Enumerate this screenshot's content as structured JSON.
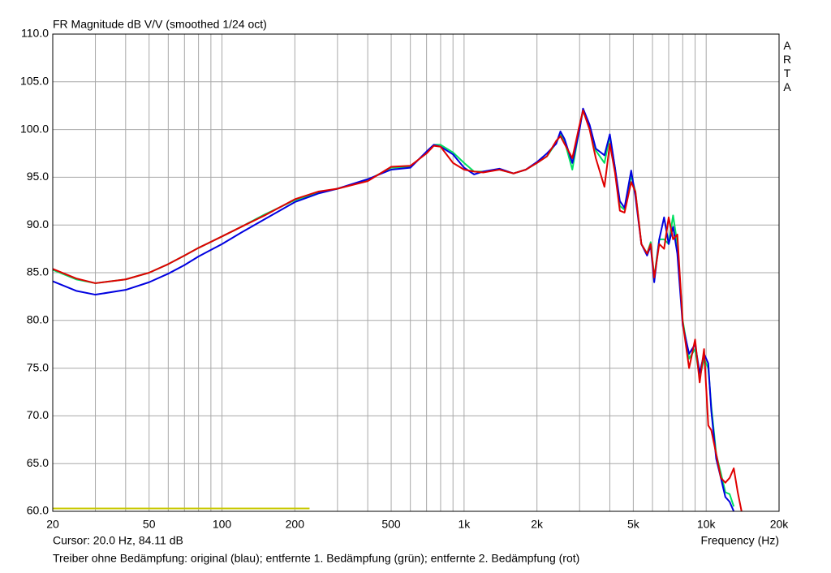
{
  "chart_data": {
    "type": "line",
    "title": "FR Magnitude dB V/V (smoothed 1/24 oct)",
    "logo": "ARTA",
    "cursor": "Cursor: 20.0 Hz, 84.11 dB",
    "xlabel": "Frequency (Hz)",
    "caption": "Treiber ohne Bedämpfung: original (blau); entfernte 1. Bedämpfung (grün); entfernte 2. Bedämpfung (rot)",
    "xlog": true,
    "grid": true,
    "xlim": [
      20,
      20000
    ],
    "ylim": [
      60,
      110
    ],
    "xticks": [
      20,
      50,
      100,
      200,
      500,
      {
        "value": 1000,
        "label": "1k"
      },
      {
        "value": 2000,
        "label": "2k"
      },
      {
        "value": 5000,
        "label": "5k"
      },
      {
        "value": 10000,
        "label": "10k"
      },
      {
        "value": 20000,
        "label": "20k"
      }
    ],
    "xminor": [
      30,
      40,
      60,
      70,
      80,
      90,
      300,
      400,
      600,
      700,
      800,
      900,
      3000,
      4000,
      6000,
      7000,
      8000,
      9000
    ],
    "yticks": [
      {
        "value": 60,
        "label": "60.0"
      },
      {
        "value": 65,
        "label": "65.0"
      },
      {
        "value": 70,
        "label": "70.0"
      },
      {
        "value": 75,
        "label": "75.0"
      },
      {
        "value": 80,
        "label": "80.0"
      },
      {
        "value": 85,
        "label": "85.0"
      },
      {
        "value": 90,
        "label": "90.0"
      },
      {
        "value": 95,
        "label": "95.0"
      },
      {
        "value": 100,
        "label": "100.0"
      },
      {
        "value": 105,
        "label": "105.0"
      },
      {
        "value": 110,
        "label": "110.0"
      }
    ],
    "x": [
      20,
      25,
      30,
      40,
      50,
      60,
      70,
      80,
      100,
      120,
      150,
      200,
      250,
      300,
      400,
      500,
      600,
      700,
      750,
      800,
      900,
      1000,
      1100,
      1200,
      1400,
      1600,
      1800,
      2000,
      2200,
      2400,
      2500,
      2600,
      2800,
      3000,
      3100,
      3300,
      3500,
      3800,
      4000,
      4200,
      4400,
      4600,
      4900,
      5100,
      5400,
      5700,
      5900,
      6100,
      6400,
      6700,
      7000,
      7300,
      7600,
      8000,
      8500,
      9000,
      9400,
      9800,
      10200,
      10500,
      11000,
      11500,
      12000,
      12500,
      13000,
      13500,
      14000
    ],
    "series": [
      {
        "color": "#c8c800",
        "x": [
          20,
          230
        ],
        "values": [
          60.3,
          60.3
        ]
      },
      {
        "color": "#00e060",
        "values": [
          85.3,
          84.3,
          83.9,
          84.3,
          85.0,
          85.9,
          86.8,
          87.6,
          88.8,
          89.8,
          91.1,
          92.6,
          93.4,
          93.8,
          94.7,
          96.0,
          96.1,
          97.6,
          98.4,
          98.4,
          97.6,
          96.5,
          95.6,
          95.6,
          95.8,
          95.4,
          95.8,
          96.5,
          97.2,
          98.6,
          99.5,
          98.8,
          95.8,
          100.2,
          102.0,
          100.3,
          97.8,
          96.5,
          99.3,
          96.0,
          92.0,
          91.6,
          95.2,
          93.5,
          88.0,
          87.0,
          88.2,
          84.5,
          88.5,
          88.5,
          88.0,
          91.0,
          88.0,
          80.0,
          76.0,
          77.0,
          74.0,
          76.0,
          75.0,
          71.0,
          66.0,
          64.0,
          62.0,
          61.8,
          60.5,
          null,
          null
        ]
      },
      {
        "color": "#0000e0",
        "values": [
          84.1,
          83.1,
          82.7,
          83.2,
          84.0,
          84.9,
          85.8,
          86.7,
          88.0,
          89.2,
          90.6,
          92.4,
          93.3,
          93.8,
          94.8,
          95.8,
          96.0,
          97.7,
          98.4,
          98.2,
          97.4,
          96.0,
          95.3,
          95.6,
          95.9,
          95.4,
          95.8,
          96.6,
          97.5,
          98.5,
          99.8,
          99.0,
          96.5,
          100.0,
          102.2,
          100.5,
          98.0,
          97.3,
          99.5,
          96.0,
          92.5,
          91.8,
          95.7,
          93.0,
          88.0,
          86.8,
          87.8,
          84.0,
          88.5,
          90.8,
          88.0,
          89.8,
          87.0,
          79.5,
          76.5,
          77.5,
          74.5,
          76.5,
          75.5,
          70.5,
          65.5,
          63.5,
          61.5,
          61.0,
          60.0,
          null,
          null
        ]
      },
      {
        "color": "#e00000",
        "values": [
          85.4,
          84.4,
          83.9,
          84.3,
          85.0,
          85.9,
          86.8,
          87.6,
          88.8,
          89.8,
          91.0,
          92.7,
          93.5,
          93.8,
          94.6,
          96.1,
          96.2,
          97.5,
          98.3,
          98.2,
          96.5,
          95.8,
          95.6,
          95.5,
          95.8,
          95.4,
          95.8,
          96.5,
          97.2,
          98.8,
          99.3,
          98.5,
          97.0,
          100.5,
          102.0,
          100.0,
          97.0,
          94.0,
          98.5,
          95.5,
          91.5,
          91.3,
          94.5,
          93.5,
          88.0,
          87.0,
          88.0,
          84.5,
          88.0,
          87.5,
          90.8,
          88.5,
          89.0,
          79.8,
          75.0,
          78.0,
          73.5,
          77.0,
          69.0,
          68.5,
          66.0,
          63.5,
          63.0,
          63.5,
          64.5,
          62.0,
          60.0
        ]
      }
    ]
  }
}
